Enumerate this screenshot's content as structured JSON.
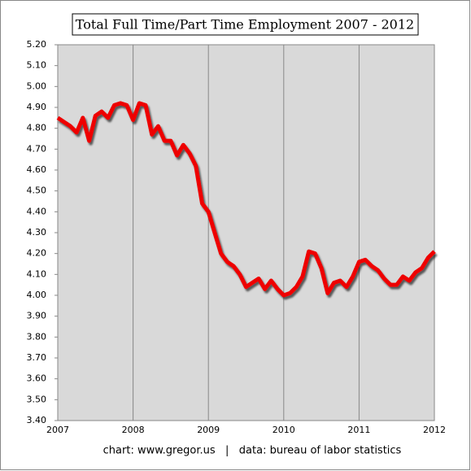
{
  "chart_data": {
    "type": "line",
    "title": "Total Full Time/Part Time Employment 2007 - 2012",
    "source": "chart: www.gregor.us   |   data: bureau of labor statistics",
    "x": [
      2007.0,
      2007.083,
      2007.167,
      2007.25,
      2007.333,
      2007.417,
      2007.5,
      2007.583,
      2007.667,
      2007.75,
      2007.833,
      2007.917,
      2008.0,
      2008.083,
      2008.167,
      2008.25,
      2008.333,
      2008.417,
      2008.5,
      2008.583,
      2008.667,
      2008.75,
      2008.833,
      2008.917,
      2009.0,
      2009.083,
      2009.167,
      2009.25,
      2009.333,
      2009.417,
      2009.5,
      2009.583,
      2009.667,
      2009.75,
      2009.833,
      2009.917,
      2010.0,
      2010.083,
      2010.167,
      2010.25,
      2010.333,
      2010.417,
      2010.5,
      2010.583,
      2010.667,
      2010.75,
      2010.833,
      2010.917,
      2011.0,
      2011.083,
      2011.167,
      2011.25,
      2011.333,
      2011.417,
      2011.5,
      2011.583,
      2011.667,
      2011.75,
      2011.833,
      2011.917,
      2012.0
    ],
    "series": [
      {
        "color": "#ee0000",
        "values": [
          4.85,
          4.83,
          4.81,
          4.78,
          4.85,
          4.74,
          4.86,
          4.88,
          4.85,
          4.91,
          4.92,
          4.91,
          4.84,
          4.92,
          4.91,
          4.77,
          4.81,
          4.74,
          4.74,
          4.67,
          4.72,
          4.68,
          4.62,
          4.44,
          4.4,
          4.3,
          4.2,
          4.16,
          4.14,
          4.1,
          4.04,
          4.06,
          4.08,
          4.03,
          4.07,
          4.03,
          4.0,
          4.01,
          4.04,
          4.09,
          4.21,
          4.2,
          4.13,
          4.01,
          4.06,
          4.07,
          4.04,
          4.09,
          4.16,
          4.17,
          4.14,
          4.12,
          4.08,
          4.05,
          4.05,
          4.09,
          4.07,
          4.11,
          4.13,
          4.18,
          4.21
        ]
      }
    ],
    "xlim": [
      2007,
      2012
    ],
    "xticks": [
      2007,
      2008,
      2009,
      2010,
      2011,
      2012
    ],
    "ylim": [
      3.4,
      5.2
    ],
    "yticks": [
      {
        "value": 3.4,
        "label": "3.40"
      },
      {
        "value": 3.5,
        "label": "3.50"
      },
      {
        "value": 3.6,
        "label": "3.60"
      },
      {
        "value": 3.7,
        "label": "3.70"
      },
      {
        "value": 3.8,
        "label": "3.80"
      },
      {
        "value": 3.9,
        "label": "3.90"
      },
      {
        "value": 4.0,
        "label": "4.00"
      },
      {
        "value": 4.1,
        "label": "4.10"
      },
      {
        "value": 4.2,
        "label": "4.20"
      },
      {
        "value": 4.3,
        "label": "4.30"
      },
      {
        "value": 4.4,
        "label": "4.40"
      },
      {
        "value": 4.5,
        "label": "4.50"
      },
      {
        "value": 4.6,
        "label": "4.60"
      },
      {
        "value": 4.7,
        "label": "4.70"
      },
      {
        "value": 4.8,
        "label": "4.80"
      },
      {
        "value": 4.9,
        "label": "4.90"
      },
      {
        "value": 5.0,
        "label": "5.00"
      },
      {
        "value": 5.1,
        "label": "5.10"
      },
      {
        "value": 5.2,
        "label": "5.20"
      }
    ],
    "xgrid": true
  }
}
